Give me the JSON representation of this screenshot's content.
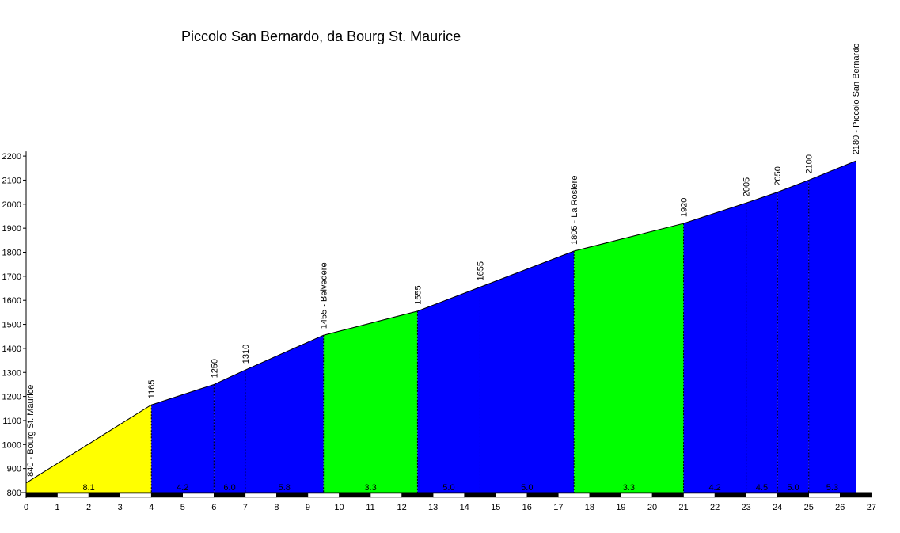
{
  "chart_data": {
    "type": "area",
    "title": "Piccolo San Bernardo, da Bourg St. Maurice",
    "xlabel": "",
    "ylabel": "",
    "xlim": [
      0,
      27
    ],
    "ylim": [
      800,
      2200
    ],
    "x_ticks": [
      0,
      1,
      2,
      3,
      4,
      5,
      6,
      7,
      8,
      9,
      10,
      11,
      12,
      13,
      14,
      15,
      16,
      17,
      18,
      19,
      20,
      21,
      22,
      23,
      24,
      25,
      26,
      27
    ],
    "y_ticks": [
      800,
      900,
      1000,
      1100,
      1200,
      1300,
      1400,
      1500,
      1600,
      1700,
      1800,
      1900,
      2000,
      2100,
      2200
    ],
    "profile_points": [
      {
        "km": 0,
        "alt": 840,
        "label": "840 - Bourg St. Maurice"
      },
      {
        "km": 4,
        "alt": 1165,
        "label": "1165"
      },
      {
        "km": 6,
        "alt": 1250,
        "label": "1250"
      },
      {
        "km": 7,
        "alt": 1310,
        "label": "1310"
      },
      {
        "km": 9.5,
        "alt": 1455,
        "label": "1455 - Belvedere"
      },
      {
        "km": 12.5,
        "alt": 1555,
        "label": "1555"
      },
      {
        "km": 14.5,
        "alt": 1655,
        "label": "1655"
      },
      {
        "km": 17.5,
        "alt": 1805,
        "label": "1805 - La Rosiere"
      },
      {
        "km": 21,
        "alt": 1920,
        "label": "1920"
      },
      {
        "km": 23,
        "alt": 2005,
        "label": "2005"
      },
      {
        "km": 24,
        "alt": 2050,
        "label": "2050"
      },
      {
        "km": 25,
        "alt": 2100,
        "label": "2100"
      },
      {
        "km": 26.5,
        "alt": 2180,
        "label": "2180 - Piccolo San Bernardo"
      }
    ],
    "segments": [
      {
        "from": 0,
        "to": 4,
        "gradient": "8.1",
        "color": "#ffff00"
      },
      {
        "from": 4,
        "to": 6,
        "gradient": "4.2",
        "color": "#0000ff"
      },
      {
        "from": 6,
        "to": 7,
        "gradient": "6.0",
        "color": "#0000ff"
      },
      {
        "from": 7,
        "to": 9.5,
        "gradient": "5.8",
        "color": "#0000ff"
      },
      {
        "from": 9.5,
        "to": 12.5,
        "gradient": "3.3",
        "color": "#00ff00"
      },
      {
        "from": 12.5,
        "to": 14.5,
        "gradient": "5.0",
        "color": "#0000ff"
      },
      {
        "from": 14.5,
        "to": 17.5,
        "gradient": "5.0",
        "color": "#0000ff"
      },
      {
        "from": 17.5,
        "to": 21,
        "gradient": "3.3",
        "color": "#00ff00"
      },
      {
        "from": 21,
        "to": 23,
        "gradient": "4.2",
        "color": "#0000ff"
      },
      {
        "from": 23,
        "to": 24,
        "gradient": "4.5",
        "color": "#0000ff"
      },
      {
        "from": 24,
        "to": 25,
        "gradient": "5.0",
        "color": "#0000ff"
      },
      {
        "from": 25,
        "to": 26.5,
        "gradient": "5.3",
        "color": "#0000ff"
      }
    ]
  }
}
